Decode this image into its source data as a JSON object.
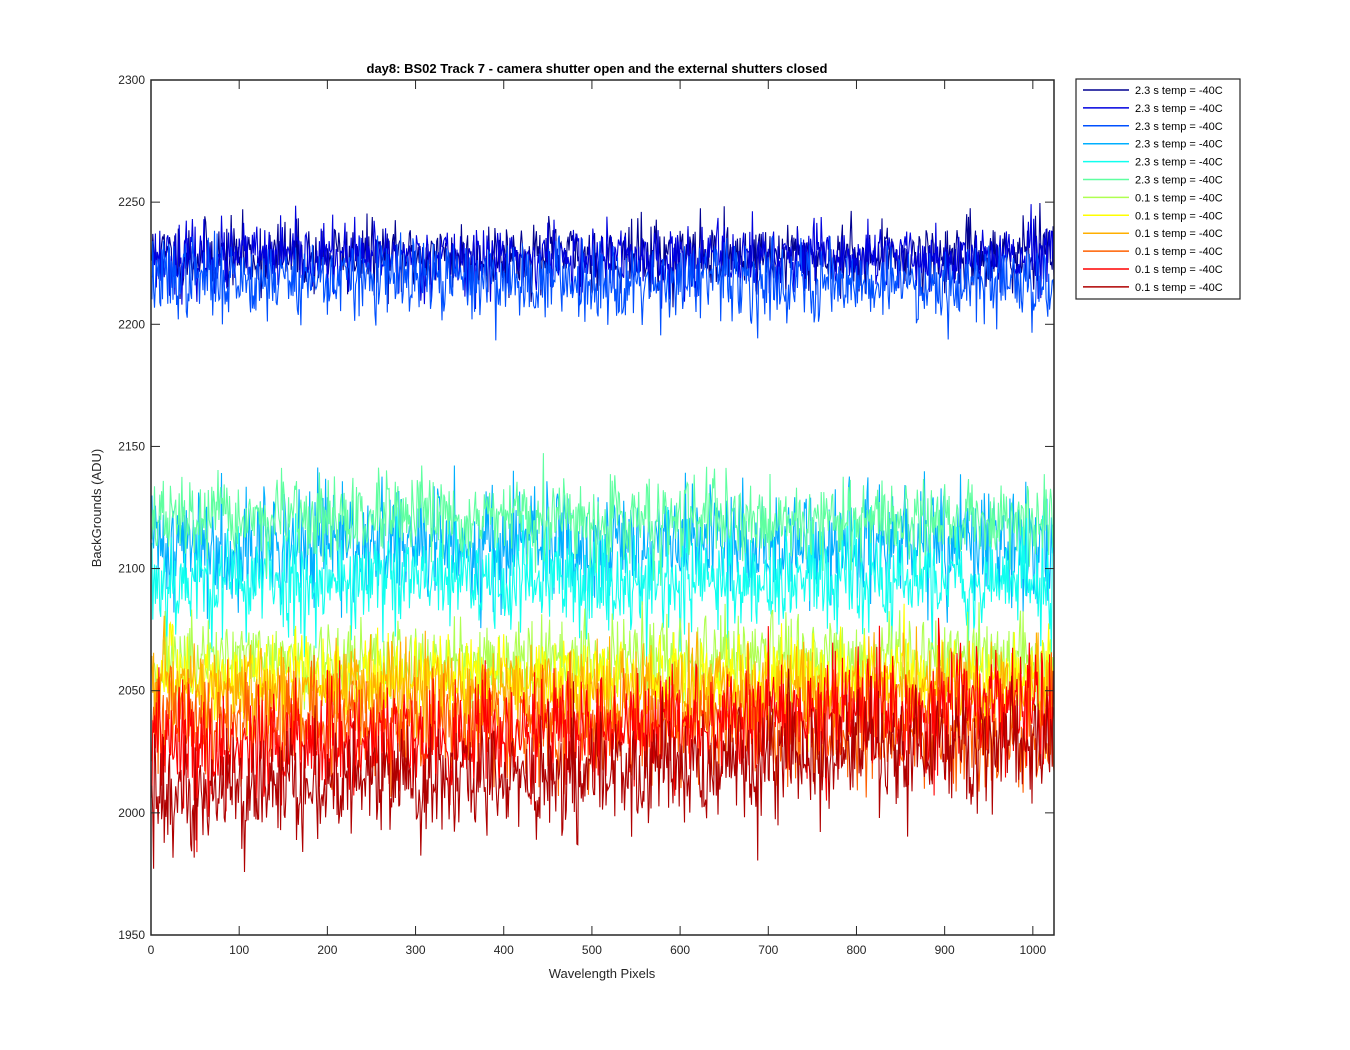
{
  "chart_data": {
    "type": "line",
    "title": "day8: BS02  Track 7 - camera shutter open and the external shutters closed",
    "xlabel": "Wavelength Pixels",
    "ylabel": "BackGrounds (ADU)",
    "xlim": [
      0,
      1024
    ],
    "ylim": [
      1950,
      2300
    ],
    "xticks": [
      0,
      100,
      200,
      300,
      400,
      500,
      600,
      700,
      800,
      900,
      1000
    ],
    "yticks": [
      1950,
      2000,
      2050,
      2100,
      2150,
      2200,
      2250,
      2300
    ],
    "grid": false,
    "legend_position": "outside-top-right",
    "x": {
      "start": 1,
      "end": 1024,
      "step": 1
    },
    "series": [
      {
        "name": "2.3 s temp = -40C",
        "color": "#00008f",
        "mean": 2228,
        "noise": 7,
        "drift": 0,
        "seed": 11
      },
      {
        "name": "2.3 s temp = -40C",
        "color": "#0000df",
        "mean": 2227,
        "noise": 7,
        "drift": 0,
        "seed": 23
      },
      {
        "name": "2.3 s temp = -40C",
        "color": "#0050ff",
        "mean": 2218,
        "noise": 8,
        "drift": -2,
        "seed": 37
      },
      {
        "name": "2.3 s temp = -40C",
        "color": "#00afff",
        "mean": 2110,
        "noise": 12,
        "drift": 0,
        "seed": 41
      },
      {
        "name": "2.3 s temp = -40C",
        "color": "#10ffef",
        "mean": 2095,
        "noise": 11,
        "drift": 0,
        "seed": 53
      },
      {
        "name": "2.3 s temp = -40C",
        "color": "#5fffa0",
        "mean": 2120,
        "noise": 8,
        "drift": 0,
        "seed": 67
      },
      {
        "name": "0.1 s temp = -40C",
        "color": "#afff50",
        "mean": 2062,
        "noise": 9,
        "drift": 0,
        "seed": 71
      },
      {
        "name": "0.1 s temp = -40C",
        "color": "#ffff00",
        "mean": 2055,
        "noise": 9,
        "drift": 0,
        "seed": 83
      },
      {
        "name": "0.1 s temp = -40C",
        "color": "#ffaf00",
        "mean": 2050,
        "noise": 10,
        "drift": 0,
        "seed": 97
      },
      {
        "name": "0.1 s temp = -40C",
        "color": "#ff6000",
        "mean": 2035,
        "noise": 11,
        "drift": -5,
        "seed": 101
      },
      {
        "name": "0.1 s temp = -40C",
        "color": "#ff0000",
        "mean": 2035,
        "noise": 12,
        "drift": 20,
        "seed": 113
      },
      {
        "name": "0.1 s temp = -40C",
        "color": "#af0000",
        "mean": 2018,
        "noise": 12,
        "drift": 25,
        "seed": 127
      }
    ]
  }
}
